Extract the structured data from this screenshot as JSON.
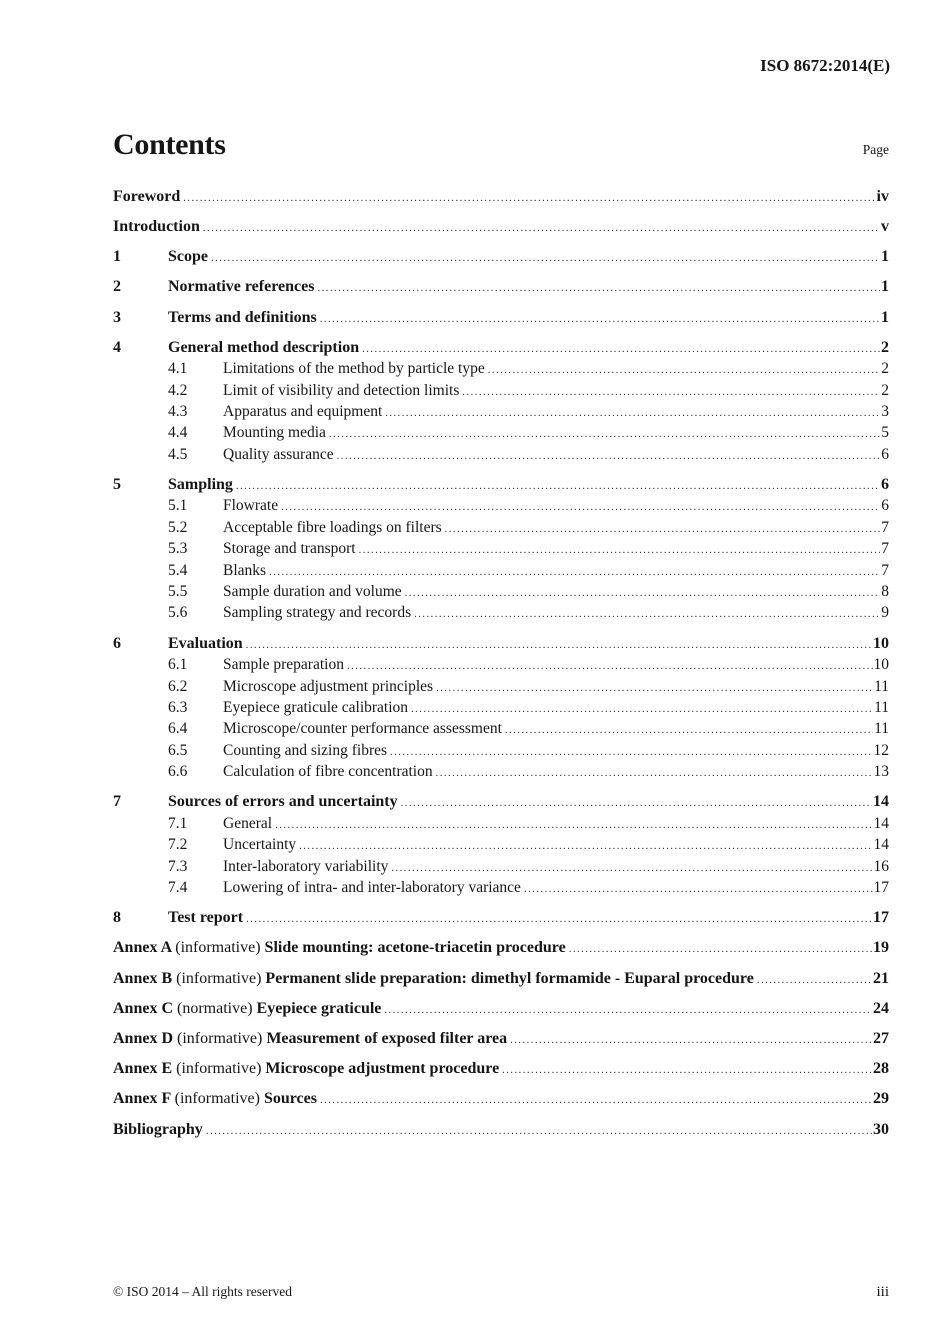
{
  "header": {
    "reference": "ISO 8672:2014(E)",
    "title": "Contents",
    "page_label": "Page"
  },
  "toc": {
    "entries": [
      {
        "kind": "plain",
        "label": "Foreword",
        "page": "iv"
      },
      {
        "kind": "plain",
        "label": "Introduction",
        "page": "v"
      },
      {
        "kind": "numbered",
        "num": "1",
        "label": "Scope",
        "page": "1"
      },
      {
        "kind": "numbered",
        "num": "2",
        "label": "Normative references",
        "page": "1"
      },
      {
        "kind": "numbered",
        "num": "3",
        "label": "Terms and definitions",
        "page": "1"
      },
      {
        "kind": "numbered",
        "num": "4",
        "label": "General method description",
        "page": "2"
      },
      {
        "kind": "sub",
        "num": "4.1",
        "label": "Limitations of the method by particle type",
        "page": "2"
      },
      {
        "kind": "sub",
        "num": "4.2",
        "label": "Limit of visibility and detection limits",
        "page": "2"
      },
      {
        "kind": "sub",
        "num": "4.3",
        "label": "Apparatus and equipment",
        "page": "3"
      },
      {
        "kind": "sub",
        "num": "4.4",
        "label": "Mounting media",
        "page": "5"
      },
      {
        "kind": "sub",
        "num": "4.5",
        "label": "Quality assurance",
        "page": "6"
      },
      {
        "kind": "numbered",
        "num": "5",
        "label": "Sampling",
        "page": "6"
      },
      {
        "kind": "sub",
        "num": "5.1",
        "label": "Flowrate",
        "page": "6"
      },
      {
        "kind": "sub",
        "num": "5.2",
        "label": "Acceptable fibre loadings on filters",
        "page": "7"
      },
      {
        "kind": "sub",
        "num": "5.3",
        "label": "Storage and transport",
        "page": "7"
      },
      {
        "kind": "sub",
        "num": "5.4",
        "label": "Blanks",
        "page": "7"
      },
      {
        "kind": "sub",
        "num": "5.5",
        "label": "Sample duration and volume",
        "page": "8"
      },
      {
        "kind": "sub",
        "num": "5.6",
        "label": "Sampling strategy and records",
        "page": "9"
      },
      {
        "kind": "numbered",
        "num": "6",
        "label": "Evaluation",
        "page": "10"
      },
      {
        "kind": "sub",
        "num": "6.1",
        "label": "Sample preparation",
        "page": "10"
      },
      {
        "kind": "sub",
        "num": "6.2",
        "label": "Microscope adjustment principles",
        "page": "11"
      },
      {
        "kind": "sub",
        "num": "6.3",
        "label": "Eyepiece graticule calibration",
        "page": "11"
      },
      {
        "kind": "sub",
        "num": "6.4",
        "label": "Microscope/counter performance assessment",
        "page": "11"
      },
      {
        "kind": "sub",
        "num": "6.5",
        "label": "Counting and sizing fibres",
        "page": "12"
      },
      {
        "kind": "sub",
        "num": "6.6",
        "label": "Calculation of fibre concentration",
        "page": "13"
      },
      {
        "kind": "numbered",
        "num": "7",
        "label": "Sources of errors and uncertainty",
        "page": "14"
      },
      {
        "kind": "sub",
        "num": "7.1",
        "label": "General",
        "page": "14"
      },
      {
        "kind": "sub",
        "num": "7.2",
        "label": "Uncertainty",
        "page": "14"
      },
      {
        "kind": "sub",
        "num": "7.3",
        "label": "Inter-laboratory variability",
        "page": "16"
      },
      {
        "kind": "sub",
        "num": "7.4",
        "label": "Lowering of intra- and inter-laboratory variance",
        "page": "17"
      },
      {
        "kind": "numbered",
        "num": "8",
        "label": "Test report",
        "page": "17"
      },
      {
        "kind": "annex",
        "name": "Annex A",
        "qualifier": "(informative)",
        "label": "Slide mounting: acetone-triacetin procedure",
        "page": "19"
      },
      {
        "kind": "annex",
        "name": "Annex B",
        "qualifier": "(informative)",
        "label": "Permanent slide preparation: dimethyl formamide - Euparal procedure",
        "page": "21"
      },
      {
        "kind": "annex",
        "name": "Annex C",
        "qualifier": "(normative)",
        "label": "Eyepiece graticule",
        "page": "24"
      },
      {
        "kind": "annex",
        "name": "Annex D",
        "qualifier": "(informative)",
        "label": "Measurement of exposed filter area",
        "page": "27"
      },
      {
        "kind": "annex",
        "name": "Annex E",
        "qualifier": "(informative)",
        "label": "Microscope adjustment procedure",
        "page": "28"
      },
      {
        "kind": "annex",
        "name": "Annex F",
        "qualifier": "(informative)",
        "label": "Sources",
        "page": "29"
      },
      {
        "kind": "plain",
        "label": "Bibliography",
        "page": "30"
      }
    ]
  },
  "footer": {
    "left": "© ISO 2014 – All rights reserved",
    "right": "iii"
  }
}
